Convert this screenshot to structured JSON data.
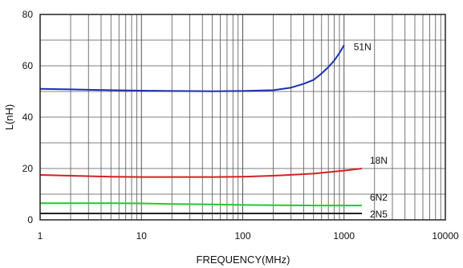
{
  "chart_data": {
    "type": "line",
    "xlabel": "FREQUENCY(MHz)",
    "ylabel": "L(nH)",
    "x_scale": "log",
    "xlim": [
      1,
      10000
    ],
    "ylim": [
      0,
      80
    ],
    "x_ticks": [
      "1",
      "10",
      "100",
      "1000",
      "10000"
    ],
    "y_ticks": [
      "0",
      "20",
      "40",
      "60",
      "80"
    ],
    "grid": true,
    "series": [
      {
        "name": "51N",
        "color": "#1a2fb5",
        "x": [
          1,
          2,
          5,
          10,
          20,
          50,
          100,
          200,
          300,
          400,
          500,
          600,
          700,
          800,
          900,
          1000
        ],
        "y": [
          51,
          50.8,
          50.5,
          50.3,
          50.2,
          50.1,
          50.2,
          50.5,
          51.5,
          53,
          54.5,
          57,
          59.5,
          62,
          65,
          68
        ]
      },
      {
        "name": "18N",
        "color": "#d42020",
        "x": [
          1,
          2,
          5,
          10,
          20,
          50,
          100,
          200,
          500,
          1000,
          1500
        ],
        "y": [
          17.5,
          17.2,
          16.8,
          16.7,
          16.7,
          16.7,
          16.8,
          17.2,
          18,
          19.2,
          20
        ]
      },
      {
        "name": "6N2",
        "color": "#22c933",
        "x": [
          1,
          2,
          5,
          10,
          20,
          50,
          100,
          200,
          500,
          1000,
          1500
        ],
        "y": [
          6.5,
          6.5,
          6.5,
          6.4,
          6.2,
          6.0,
          5.8,
          5.7,
          5.6,
          5.6,
          5.6
        ]
      },
      {
        "name": "2N5",
        "color": "#222222",
        "x": [
          1,
          2,
          5,
          10,
          20,
          50,
          100,
          200,
          500,
          1000,
          1500
        ],
        "y": [
          2.5,
          2.5,
          2.5,
          2.5,
          2.5,
          2.5,
          2.5,
          2.5,
          2.5,
          2.5,
          2.5
        ]
      }
    ]
  }
}
